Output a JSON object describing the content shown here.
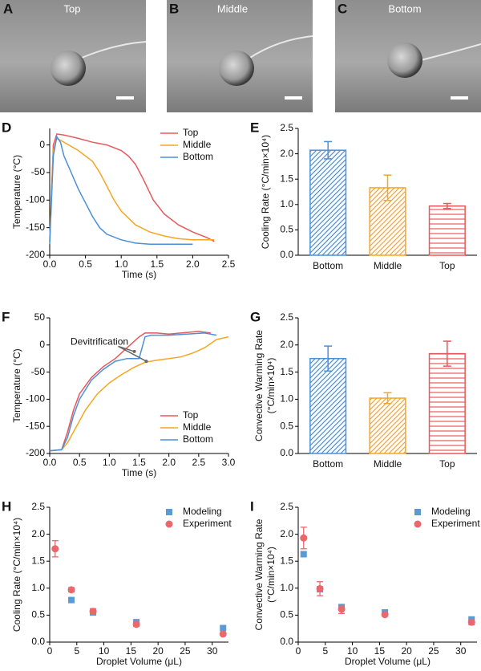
{
  "photos": [
    {
      "letter": "A",
      "label": "Top"
    },
    {
      "letter": "B",
      "label": "Middle"
    },
    {
      "letter": "C",
      "label": "Bottom"
    }
  ],
  "chart_data": [
    {
      "type": "line",
      "panel": "D",
      "xlabel": "Time (s)",
      "ylabel": "Temperature (°C)",
      "xlim": [
        0,
        2.5
      ],
      "xticks": [
        {
          "value": 0,
          "label": "0.0"
        },
        0.5,
        {
          "value": 1,
          "label": "1.0"
        },
        1.5,
        {
          "value": 2,
          "label": "2.0"
        },
        2.5
      ],
      "ylim": [
        -200,
        30
      ],
      "yticks": [
        -200,
        -150,
        -100,
        -50,
        0
      ],
      "legend": "upper right",
      "series": [
        {
          "name": "Top",
          "color": "#e8585c",
          "x": [
            0,
            0.05,
            0.1,
            0.2,
            0.4,
            0.6,
            0.8,
            1.0,
            1.1,
            1.2,
            1.3,
            1.45,
            1.6,
            1.8,
            2.0,
            2.2,
            2.3
          ],
          "values": [
            -175,
            0,
            20,
            18,
            12,
            5,
            0,
            -10,
            -20,
            -35,
            -60,
            -100,
            -125,
            -145,
            -158,
            -168,
            -175
          ]
        },
        {
          "name": "Middle",
          "color": "#f5a623",
          "x": [
            0,
            0.05,
            0.1,
            0.2,
            0.4,
            0.6,
            0.7,
            0.8,
            0.9,
            1.0,
            1.2,
            1.4,
            1.6,
            1.8,
            2.0,
            2.2,
            2.3
          ],
          "values": [
            -170,
            -10,
            12,
            5,
            -10,
            -30,
            -50,
            -75,
            -100,
            -120,
            -145,
            -158,
            -165,
            -170,
            -172,
            -172,
            -172
          ]
        },
        {
          "name": "Bottom",
          "color": "#4a90d9",
          "x": [
            0,
            0.05,
            0.1,
            0.15,
            0.2,
            0.3,
            0.4,
            0.5,
            0.6,
            0.7,
            0.8,
            1.0,
            1.2,
            1.4,
            1.6,
            1.8,
            2.0
          ],
          "values": [
            -180,
            -20,
            15,
            5,
            -20,
            -50,
            -80,
            -105,
            -130,
            -150,
            -162,
            -172,
            -178,
            -180,
            -180,
            -180,
            -180
          ]
        }
      ]
    },
    {
      "type": "bar",
      "panel": "E",
      "ylabel": "Cooling Rate (°C/min×10⁴)",
      "categories": [
        "Bottom",
        "Middle",
        "Top"
      ],
      "values": [
        2.07,
        1.33,
        0.97
      ],
      "errors": [
        0.17,
        0.25,
        0.05
      ],
      "colors": [
        "#4a90d9",
        "#f5a623",
        "#e8585c"
      ],
      "hatch": [
        "diagonal",
        "diagonal",
        "horizontal"
      ],
      "ylim": [
        0,
        2.5
      ],
      "yticks": [
        {
          "value": 0,
          "label": "0.0"
        },
        0.5,
        {
          "value": 1,
          "label": "1.0"
        },
        1.5,
        {
          "value": 2,
          "label": "2.0"
        },
        2.5
      ]
    },
    {
      "type": "line",
      "panel": "F",
      "xlabel": "Time (s)",
      "ylabel": "Temperature (°C)",
      "annotation": "Devitrification",
      "xlim": [
        0,
        3
      ],
      "xticks": [
        {
          "value": 0,
          "label": "0.0"
        },
        0.5,
        {
          "value": 1,
          "label": "1.0"
        },
        1.5,
        {
          "value": 2,
          "label": "2.0"
        },
        2.5,
        {
          "value": 3,
          "label": "3.0"
        }
      ],
      "ylim": [
        -200,
        50
      ],
      "yticks": [
        -200,
        -150,
        -100,
        -50,
        0,
        50
      ],
      "legend": "lower right",
      "series": [
        {
          "name": "Top",
          "color": "#e8585c",
          "x": [
            0,
            0.2,
            0.3,
            0.4,
            0.5,
            0.7,
            0.9,
            1.1,
            1.3,
            1.5,
            1.6,
            1.8,
            2.0,
            2.2,
            2.5,
            2.7
          ],
          "values": [
            -195,
            -193,
            -160,
            -120,
            -90,
            -60,
            -40,
            -25,
            -5,
            15,
            22,
            22,
            20,
            22,
            25,
            22
          ]
        },
        {
          "name": "Middle",
          "color": "#f5a623",
          "x": [
            0,
            0.2,
            0.3,
            0.4,
            0.6,
            0.8,
            1.0,
            1.2,
            1.4,
            1.6,
            1.8,
            2.0,
            2.2,
            2.4,
            2.6,
            2.8,
            3.0
          ],
          "values": [
            -195,
            -193,
            -180,
            -160,
            -120,
            -90,
            -70,
            -55,
            -42,
            -32,
            -28,
            -25,
            -22,
            -15,
            -5,
            10,
            15
          ]
        },
        {
          "name": "Bottom",
          "color": "#4a90d9",
          "x": [
            0,
            0.2,
            0.3,
            0.4,
            0.5,
            0.7,
            0.9,
            1.1,
            1.3,
            1.5,
            1.6,
            1.7,
            2.0,
            2.3,
            2.6,
            2.8
          ],
          "values": [
            -195,
            -193,
            -170,
            -130,
            -100,
            -65,
            -45,
            -30,
            -25,
            -25,
            15,
            18,
            18,
            20,
            22,
            18
          ]
        }
      ]
    },
    {
      "type": "bar",
      "panel": "G",
      "ylabel": [
        "Convective Warming Rate",
        "(°C/min×10⁴)"
      ],
      "categories": [
        "Bottom",
        "Middle",
        "Top"
      ],
      "values": [
        1.75,
        1.02,
        1.84
      ],
      "errors": [
        0.23,
        0.1,
        0.23
      ],
      "colors": [
        "#4a90d9",
        "#f5a623",
        "#e8585c"
      ],
      "hatch": [
        "diagonal",
        "diagonal",
        "horizontal"
      ],
      "ylim": [
        0,
        2.5
      ],
      "yticks": [
        {
          "value": 0,
          "label": "0.0"
        },
        0.5,
        {
          "value": 1,
          "label": "1.0"
        },
        1.5,
        {
          "value": 2,
          "label": "2.0"
        },
        2.5
      ]
    },
    {
      "type": "scatter",
      "panel": "H",
      "xlabel": "Droplet Volume (μL)",
      "ylabel": "Cooling Rate (°C/min×10⁴)",
      "xlim": [
        0,
        33
      ],
      "xticks": [
        0,
        5,
        10,
        15,
        20,
        25,
        30
      ],
      "ylim": [
        0,
        2.5
      ],
      "yticks": [
        {
          "value": 0,
          "label": "0.0"
        },
        0.5,
        {
          "value": 1,
          "label": "1.0"
        },
        1.5,
        {
          "value": 2,
          "label": "2.0"
        },
        2.5
      ],
      "legend": "upper right",
      "series": [
        {
          "name": "Modeling",
          "color": "#5b9bd5",
          "marker": "square",
          "x": [
            4,
            8,
            16,
            32
          ],
          "values": [
            0.78,
            0.55,
            0.37,
            0.26
          ]
        },
        {
          "name": "Experiment",
          "color": "#e8686c",
          "marker": "circle",
          "x": [
            1,
            4,
            8,
            16,
            32
          ],
          "values": [
            1.73,
            0.97,
            0.57,
            0.33,
            0.15
          ],
          "errors": [
            0.15,
            0.04,
            0.05,
            0.04,
            0.02
          ]
        }
      ]
    },
    {
      "type": "scatter",
      "panel": "I",
      "xlabel": "Droplet Volume (μL)",
      "ylabel": [
        "Convective Warming Rate",
        "(°C/min×10⁴)"
      ],
      "xlim": [
        0,
        33
      ],
      "xticks": [
        0,
        5,
        10,
        15,
        20,
        25,
        30
      ],
      "ylim": [
        0,
        2.5
      ],
      "yticks": [
        {
          "value": 0,
          "label": "0.0"
        },
        0.5,
        {
          "value": 1,
          "label": "1.0"
        },
        1.5,
        {
          "value": 2,
          "label": "2.0"
        },
        2.5
      ],
      "legend": "upper right",
      "series": [
        {
          "name": "Modeling",
          "color": "#5b9bd5",
          "marker": "square",
          "x": [
            1,
            4,
            8,
            16,
            32
          ],
          "values": [
            1.63,
            0.98,
            0.65,
            0.55,
            0.42
          ]
        },
        {
          "name": "Experiment",
          "color": "#e8686c",
          "marker": "circle",
          "x": [
            1,
            4,
            8,
            16,
            32
          ],
          "values": [
            1.93,
            0.99,
            0.61,
            0.51,
            0.37
          ],
          "errors": [
            0.2,
            0.13,
            0.08,
            0.03,
            0.05
          ]
        }
      ]
    }
  ]
}
